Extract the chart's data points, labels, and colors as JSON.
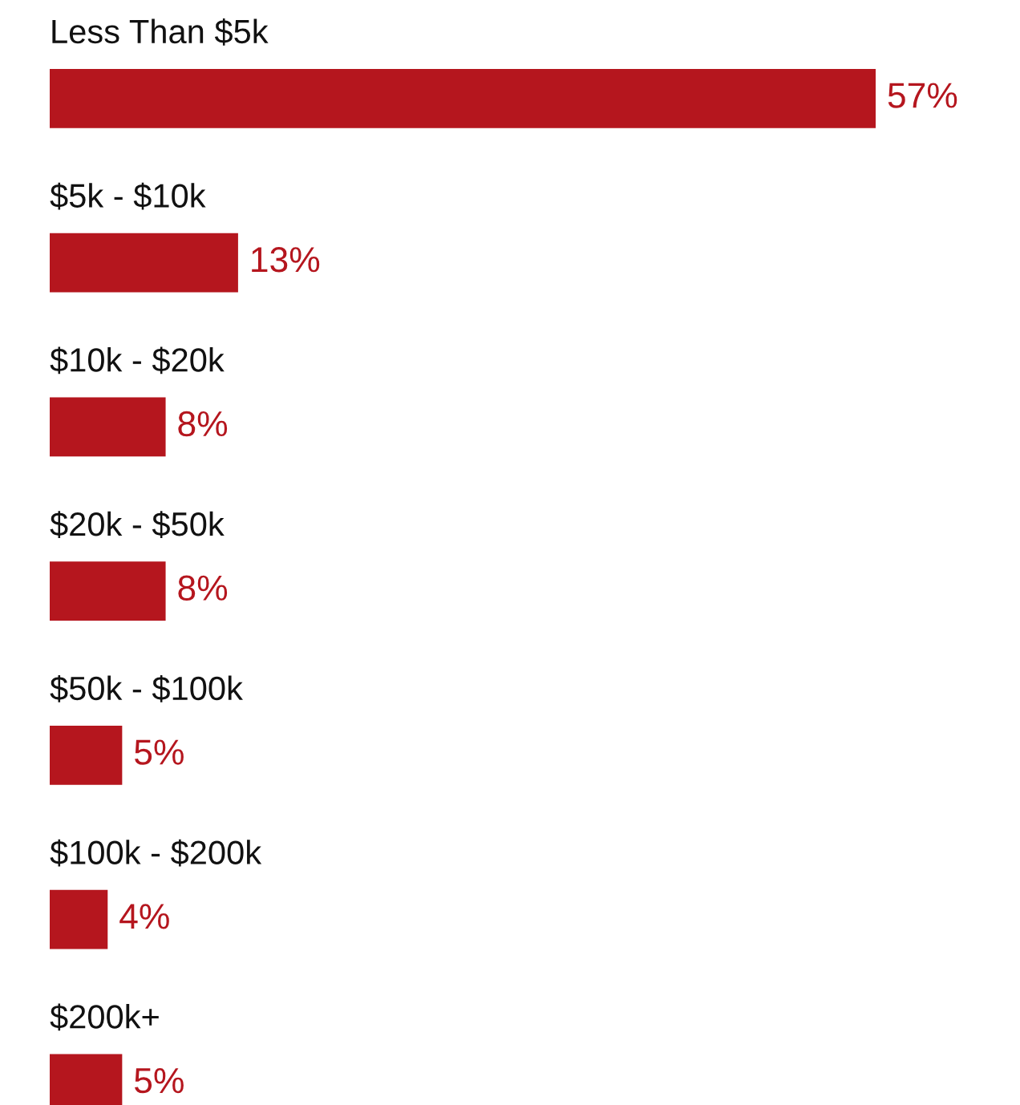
{
  "chart_data": {
    "type": "bar",
    "orientation": "horizontal",
    "categories": [
      "Less Than $5k",
      "$5k - $10k",
      "$10k - $20k",
      "$20k - $50k",
      "$50k - $100k",
      "$100k - $200k",
      "$200k+"
    ],
    "values": [
      57,
      13,
      8,
      8,
      5,
      4,
      5
    ],
    "color": "#b5161e",
    "data_labels": true,
    "value_labels": [
      "57%",
      "13%",
      "8%",
      "8%",
      "5%",
      "4%",
      "5%"
    ]
  }
}
